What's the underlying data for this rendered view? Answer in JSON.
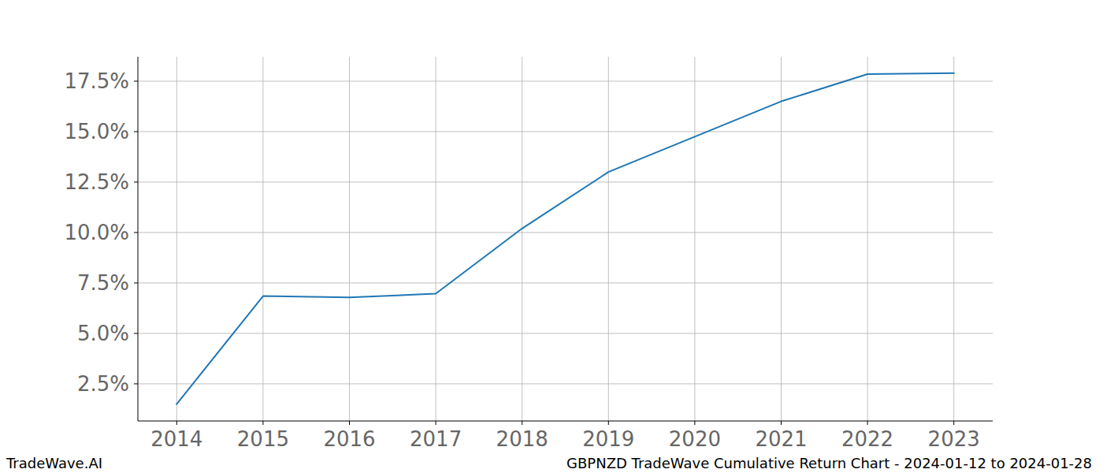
{
  "chart_data": {
    "type": "line",
    "title": "GBPNZD TradeWave Cumulative Return Chart - 2024-01-12 to 2024-01-28",
    "source": "TradeWave.AI",
    "x": [
      2014,
      2015,
      2016,
      2017,
      2018,
      2019,
      2020,
      2021,
      2022,
      2023
    ],
    "series": [
      {
        "name": "GBPNZD",
        "color": "#1f77b4",
        "values": [
          1.5,
          6.85,
          6.78,
          6.97,
          10.2,
          13.0,
          14.75,
          16.5,
          17.85,
          17.9
        ]
      }
    ],
    "xlim": [
      2013.55,
      2023.45
    ],
    "xticks": [
      2014,
      2015,
      2016,
      2017,
      2018,
      2019,
      2020,
      2021,
      2022,
      2023
    ],
    "ylim": [
      0.66,
      18.71
    ],
    "yticks": [
      {
        "value": 2.5,
        "label": "2.5%"
      },
      {
        "value": 5,
        "label": "5.0%"
      },
      {
        "value": 7.5,
        "label": "7.5%"
      },
      {
        "value": 10,
        "label": "10.0%"
      },
      {
        "value": 12.5,
        "label": "12.5%"
      },
      {
        "value": 15,
        "label": "15.0%"
      },
      {
        "value": 17.5,
        "label": "17.5%"
      }
    ],
    "grid": true
  }
}
